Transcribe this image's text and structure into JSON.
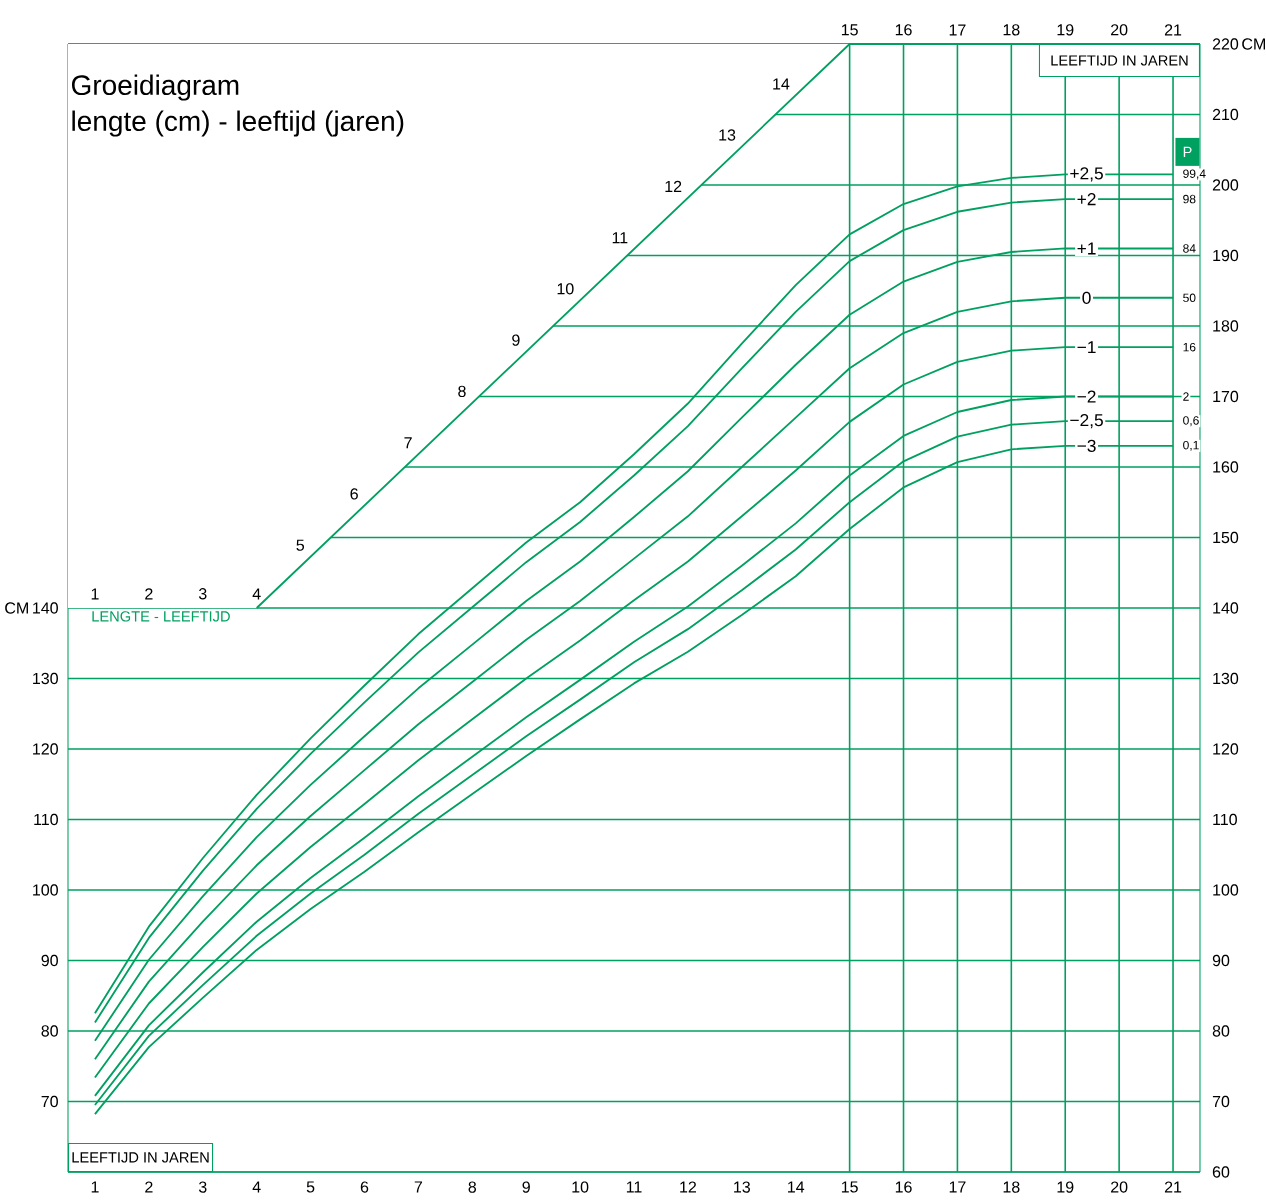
{
  "chart_data": {
    "type": "line",
    "title": "Groeidiagram",
    "subtitle": "lengte (cm) - leeftijd (jaren)",
    "ylabel": "CM",
    "y2label": "CM",
    "x": [
      1,
      2,
      3,
      4,
      5,
      6,
      7,
      8,
      9,
      10,
      11,
      12,
      13,
      14,
      15,
      16,
      17,
      18,
      19,
      20,
      21
    ],
    "series": [
      {
        "name": "+2,5",
        "color": "#00a060",
        "values": [
          82.5,
          94.8,
          104.5,
          113.5,
          121.5,
          129,
          136.3,
          142.8,
          149.3,
          155,
          161.8,
          169,
          177.5,
          185.8,
          193,
          197.3,
          199.8,
          201,
          201.5,
          201.5,
          201.5
        ]
      },
      {
        "name": "+2",
        "color": "#00a060",
        "values": [
          81.2,
          93.2,
          102.7,
          111.5,
          119.3,
          126.6,
          133.7,
          140.1,
          146.5,
          152.2,
          158.8,
          165.8,
          174,
          182,
          189.2,
          193.6,
          196.2,
          197.5,
          198,
          198,
          198
        ]
      },
      {
        "name": "+1",
        "color": "#00a060",
        "values": [
          78.6,
          90.1,
          99.1,
          107.5,
          114.9,
          121.8,
          128.6,
          134.8,
          141,
          146.6,
          152.9,
          159.4,
          167,
          174.5,
          181.6,
          186.3,
          189.1,
          190.5,
          191,
          191,
          191
        ]
      },
      {
        "name": "0",
        "color": "#00a060",
        "values": [
          76,
          87,
          95.5,
          103.5,
          110.5,
          117,
          123.5,
          129.5,
          135.5,
          141,
          147,
          153,
          160,
          167,
          174,
          179,
          182,
          183.5,
          184,
          184,
          184
        ]
      },
      {
        "name": "−1",
        "color": "#00a060",
        "values": [
          73.4,
          83.9,
          91.9,
          99.5,
          106.1,
          112.2,
          118.4,
          124.2,
          130,
          135.4,
          141.1,
          146.6,
          153,
          159.5,
          166.4,
          171.7,
          174.9,
          176.5,
          177,
          177,
          177
        ]
      },
      {
        "name": "−2",
        "color": "#00a060",
        "values": [
          70.8,
          80.8,
          88.3,
          95.5,
          101.7,
          107.4,
          113.3,
          118.9,
          124.5,
          129.8,
          135.2,
          140.2,
          146,
          152,
          158.8,
          164.4,
          167.8,
          169.5,
          170,
          170,
          170
        ]
      },
      {
        "name": "−2,5",
        "color": "#00a060",
        "values": [
          69.5,
          79.3,
          86.5,
          93.5,
          99.5,
          105,
          110.8,
          116.3,
          121.8,
          127,
          132.3,
          137,
          142.5,
          148.3,
          155,
          160.8,
          164.3,
          166,
          166.5,
          166.5,
          166.5
        ]
      },
      {
        "name": "−3",
        "color": "#00a060",
        "values": [
          68.2,
          77.7,
          84.7,
          91.5,
          97.3,
          102.6,
          108.2,
          113.6,
          119,
          124.2,
          129.3,
          133.8,
          139,
          144.5,
          151.2,
          157.1,
          160.7,
          162.5,
          163,
          163,
          163
        ]
      }
    ],
    "xlim": [
      0.5,
      21.5
    ],
    "ylim": [
      60,
      220
    ],
    "xticks": [
      1,
      2,
      3,
      4,
      5,
      6,
      7,
      8,
      9,
      10,
      11,
      12,
      13,
      14,
      15,
      16,
      17,
      18,
      19,
      20,
      21
    ],
    "x2lim": [
      0.5,
      21.5
    ],
    "x2ticks": [
      15,
      16,
      17,
      18,
      19,
      20,
      21
    ],
    "yticks": [
      70,
      80,
      90,
      100,
      110,
      120,
      130,
      140
    ],
    "y2lim": [
      60,
      220
    ],
    "y2ticks": [
      60,
      70,
      80,
      90,
      100,
      110,
      120,
      130,
      140,
      150,
      160,
      170,
      180,
      190,
      200,
      210,
      220
    ],
    "grid": true,
    "legend": false,
    "marker": "none",
    "line_style": "solid",
    "annotations": [
      "LENGTE - LEEFTIJD",
      "LEEFTIJD IN JAREN",
      "LEEFTIJD IN JAREN",
      "P",
      "1",
      "2",
      "3",
      "4",
      "5",
      "6",
      "7",
      "8",
      "9",
      "10",
      "11",
      "12",
      "13",
      "14",
      "99,4",
      "98",
      "84",
      "50",
      "16",
      "2",
      "0,6",
      "0,1"
    ]
  }
}
